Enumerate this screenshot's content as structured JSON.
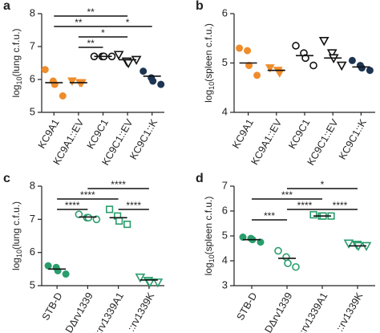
{
  "chart_data": [
    {
      "type": "strip",
      "panel": "a",
      "ylabel": {
        "base": "log",
        "subscript": "10",
        "text": "(lung c.f.u.)"
      },
      "ylim": [
        5,
        8
      ],
      "yticks": [
        5,
        6,
        7,
        8
      ],
      "groups": [
        {
          "label": "KC9A1",
          "marker": "circle",
          "filled": true,
          "color": "#ef8c2c",
          "values": [
            6.3,
            5.95,
            5.85,
            5.5
          ],
          "median": 5.9
        },
        {
          "label": "KC9A1::EV",
          "marker": "triangle-down",
          "filled": true,
          "color": "#ef8c2c",
          "values": [
            5.95,
            5.9,
            5.9
          ],
          "median": 5.9
        },
        {
          "label": "KC9C1",
          "marker": "circle",
          "filled": false,
          "color": "#111111",
          "values": [
            6.7,
            6.7,
            6.7,
            6.7
          ],
          "median": 6.7
        },
        {
          "label": "KC9C1::EV",
          "marker": "triangle-down",
          "filled": false,
          "color": "#111111",
          "values": [
            6.75,
            6.55,
            6.5,
            6.6
          ],
          "median": 6.6
        },
        {
          "label": "KC9C1::K",
          "marker": "circle",
          "filled": true,
          "color": "#1d3553",
          "values": [
            6.25,
            6.05,
            5.95,
            5.85
          ],
          "median": 6.1
        }
      ],
      "annotations": [
        [
          {
            "from": 0,
            "to": 3,
            "label": "**"
          }
        ],
        [
          {
            "from": 0,
            "to": 2,
            "label": "**"
          },
          {
            "from": 2,
            "to": 4,
            "label": "*"
          }
        ],
        [
          {
            "from": 1,
            "to": 3,
            "label": "*"
          }
        ],
        [
          {
            "from": 1,
            "to": 2,
            "label": "**"
          }
        ]
      ]
    },
    {
      "type": "strip",
      "panel": "b",
      "ylabel": {
        "base": "log",
        "subscript": "10",
        "text": "(spleen c.f.u.)"
      },
      "ylim": [
        4,
        6
      ],
      "yticks": [
        4,
        5,
        6
      ],
      "groups": [
        {
          "label": "KC9A1",
          "marker": "circle",
          "filled": true,
          "color": "#ef8c2c",
          "values": [
            5.3,
            5.25,
            4.95,
            4.75
          ],
          "median": 5.0
        },
        {
          "label": "KC9A1::EV",
          "marker": "triangle-down",
          "filled": true,
          "color": "#ef8c2c",
          "values": [
            4.9,
            4.85,
            4.8
          ],
          "median": 4.85
        },
        {
          "label": "KC9C1",
          "marker": "circle",
          "filled": false,
          "color": "#111111",
          "values": [
            5.35,
            5.2,
            5.1,
            4.95
          ],
          "median": 5.15
        },
        {
          "label": "KC9C1::EV",
          "marker": "triangle-down",
          "filled": false,
          "color": "#111111",
          "values": [
            5.45,
            5.2,
            5.1,
            4.95
          ],
          "median": 5.1
        },
        {
          "label": "KC9C1::K",
          "marker": "circle",
          "filled": true,
          "color": "#1d3553",
          "values": [
            5.05,
            4.95,
            4.9,
            4.85
          ],
          "median": 4.92
        }
      ],
      "annotations": []
    },
    {
      "type": "strip",
      "panel": "c",
      "ylabel": {
        "base": "log",
        "subscript": "10",
        "text": "(lung c.f.u.)"
      },
      "ylim": [
        5,
        8
      ],
      "yticks": [
        5,
        6,
        7,
        8
      ],
      "groups": [
        {
          "label": "STB-D",
          "marker": "circle",
          "filled": true,
          "color": "#2a9d6c",
          "values": [
            5.6,
            5.55,
            5.45,
            5.35
          ],
          "median": 5.5
        },
        {
          "label": "DΔrv1339",
          "marker": "circle",
          "filled": false,
          "color": "#2a9d6c",
          "values": [
            7.15,
            7.05,
            7.05,
            7.0
          ],
          "median": 7.07
        },
        {
          "label": "::rv1339A1",
          "marker": "square",
          "filled": false,
          "color": "#2a9d6c",
          "values": [
            7.3,
            7.1,
            6.95,
            6.85
          ],
          "median": 7.05
        },
        {
          "label": "::rv1339K",
          "marker": "triangle-down",
          "filled": false,
          "color": "#2a9d6c",
          "values": [
            5.25,
            5.15,
            5.1,
            5.1
          ],
          "median": 5.17
        }
      ],
      "annotations": [
        [
          {
            "from": 1,
            "to": 3,
            "label": "****"
          }
        ],
        [
          {
            "from": 0,
            "to": 2,
            "label": "****"
          }
        ],
        [
          {
            "from": 0,
            "to": 1,
            "label": "****"
          },
          {
            "from": 2,
            "to": 3,
            "label": "****"
          }
        ]
      ]
    },
    {
      "type": "strip",
      "panel": "d",
      "ylabel": {
        "base": "log",
        "subscript": "10",
        "text": "(spleen c.f.u.)"
      },
      "ylim": [
        3,
        7
      ],
      "yticks": [
        3,
        4,
        5,
        6,
        7
      ],
      "groups": [
        {
          "label": "STB-D",
          "marker": "circle",
          "filled": true,
          "color": "#2a9d6c",
          "values": [
            4.95,
            4.9,
            4.85,
            4.75
          ],
          "median": 4.85
        },
        {
          "label": "DΔrv1339",
          "marker": "circle",
          "filled": false,
          "color": "#2a9d6c",
          "values": [
            4.4,
            4.15,
            3.9,
            3.75
          ],
          "median": 4.1
        },
        {
          "label": "::rv1339A1",
          "marker": "square",
          "filled": false,
          "color": "#2a9d6c",
          "values": [
            5.85,
            5.8,
            5.8,
            5.8
          ],
          "median": 5.8
        },
        {
          "label": "::rv1339K",
          "marker": "triangle-down",
          "filled": false,
          "color": "#2a9d6c",
          "values": [
            4.7,
            4.65,
            4.6,
            4.6
          ],
          "median": 4.6
        }
      ],
      "annotations": [
        [
          {
            "from": 1,
            "to": 3,
            "label": "*"
          }
        ],
        [
          {
            "from": 0,
            "to": 2,
            "label": "***"
          }
        ],
        [
          {
            "from": 1,
            "to": 2,
            "label": "****"
          },
          {
            "from": 2,
            "to": 3,
            "label": "****"
          }
        ],
        [
          {
            "from": 0,
            "to": 1,
            "label": "***"
          }
        ]
      ]
    }
  ]
}
